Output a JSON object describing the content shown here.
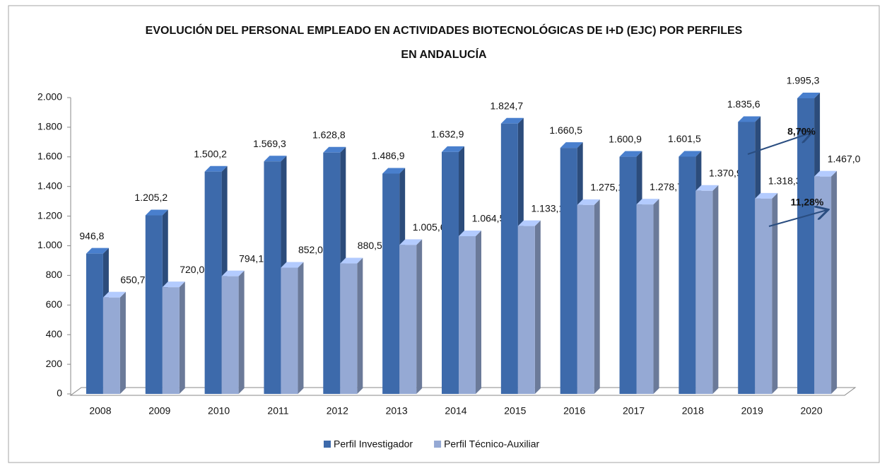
{
  "chart_data": {
    "type": "bar3d",
    "title": [
      "EVOLUCIÓN DEL PERSONAL EMPLEADO EN ACTIVIDADES BIOTECNOLÓGICAS DE I+D (EJC) POR PERFILES",
      "EN ANDALUCÍA"
    ],
    "categories": [
      "2008",
      "2009",
      "2010",
      "2011",
      "2012",
      "2013",
      "2014",
      "2015",
      "2016",
      "2017",
      "2018",
      "2019",
      "2020"
    ],
    "series": [
      {
        "name": "Perfil Investigador",
        "color": "#3d6aab",
        "values": [
          946.8,
          1205.2,
          1500.2,
          1569.3,
          1628.8,
          1486.9,
          1632.9,
          1824.7,
          1660.5,
          1600.9,
          1601.5,
          1835.6,
          1995.3
        ],
        "value_labels": [
          "946,8",
          "1.205,2",
          "1.500,2",
          "1.569,3",
          "1.628,8",
          "1.486,9",
          "1.632,9",
          "1.824,7",
          "1.660,5",
          "1.600,9",
          "1.601,5",
          "1.835,6",
          "1.995,3"
        ]
      },
      {
        "name": "Perfil Técnico-Auxiliar",
        "color": "#95a9d4",
        "values": [
          650.7,
          720.0,
          794.1,
          852.0,
          880.5,
          1005.6,
          1064.5,
          1133.1,
          1275.1,
          1278.7,
          1370.9,
          1318.3,
          1467.0
        ],
        "value_labels": [
          "650,7",
          "720,0",
          "794,1",
          "852,0",
          "880,5",
          "1.005,6",
          "1.064,5",
          "1.133,1",
          "1.275,1",
          "1.278,7",
          "1.370,9",
          "1.318,3",
          "1.467,0"
        ]
      }
    ],
    "ylim": [
      0,
      2000
    ],
    "yticks": [
      0,
      200,
      400,
      600,
      800,
      {
        "value": 1000,
        "label": "1.000"
      },
      {
        "value": 1200,
        "label": "1.200"
      },
      {
        "value": 1400,
        "label": "1.400"
      },
      {
        "value": 1600,
        "label": "1.600"
      },
      {
        "value": 1800,
        "label": "1.800"
      },
      {
        "value": 2000,
        "label": "2.000"
      }
    ],
    "annotations": [
      "8,70%",
      "11,28%"
    ],
    "legend": "bottom"
  }
}
